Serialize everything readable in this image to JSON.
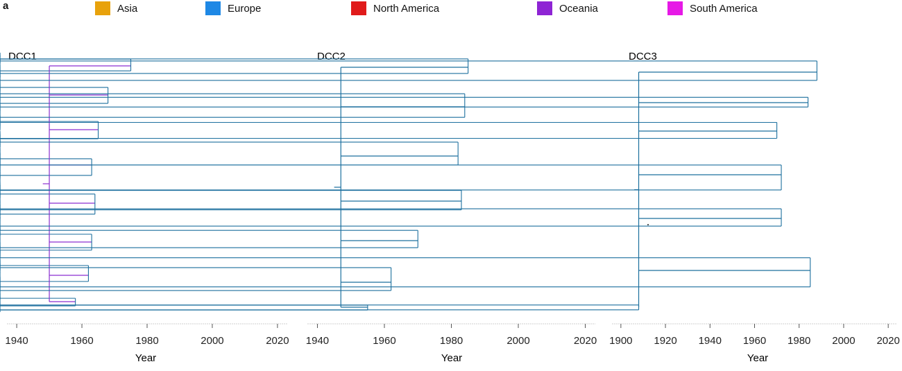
{
  "panel_label": "a",
  "legend": [
    {
      "label": "Asia",
      "color": "#e8a20c"
    },
    {
      "label": "Europe",
      "color": "#1e88e5"
    },
    {
      "label": "North America",
      "color": "#e01b1b"
    },
    {
      "label": "Oceania",
      "color": "#8e24d4"
    },
    {
      "label": "South America",
      "color": "#e619e6"
    }
  ],
  "branch_colors": {
    "europe_dark": "#1c6f9e",
    "europe_light": "#4fb6e0",
    "asia": "#d8a020",
    "north_america": "#c8141e",
    "oceania": "#8a2fd0",
    "south_america": "#e619e6",
    "axis": "#888888"
  },
  "panels": [
    {
      "title": "DCC1",
      "xlabel": "Year",
      "ticks": [
        "1940",
        "1960",
        "1980",
        "2000",
        "2020"
      ],
      "tick_values": [
        1940,
        1960,
        1980,
        2000,
        2020
      ],
      "xlim": [
        1937,
        2023
      ]
    },
    {
      "title": "DCC2",
      "xlabel": "Year",
      "ticks": [
        "1940",
        "1960",
        "1980",
        "2000",
        "2020"
      ],
      "tick_values": [
        1940,
        1960,
        1980,
        2000,
        2020
      ],
      "xlim": [
        1937,
        2023
      ]
    },
    {
      "title": "DCC3",
      "xlabel": "Year",
      "ticks": [
        "1900",
        "1920",
        "1940",
        "1960",
        "1980",
        "2000",
        "2020"
      ],
      "tick_values": [
        1900,
        1920,
        1940,
        1960,
        1980,
        2000,
        2020
      ],
      "xlim": [
        1896,
        2024
      ]
    }
  ]
}
